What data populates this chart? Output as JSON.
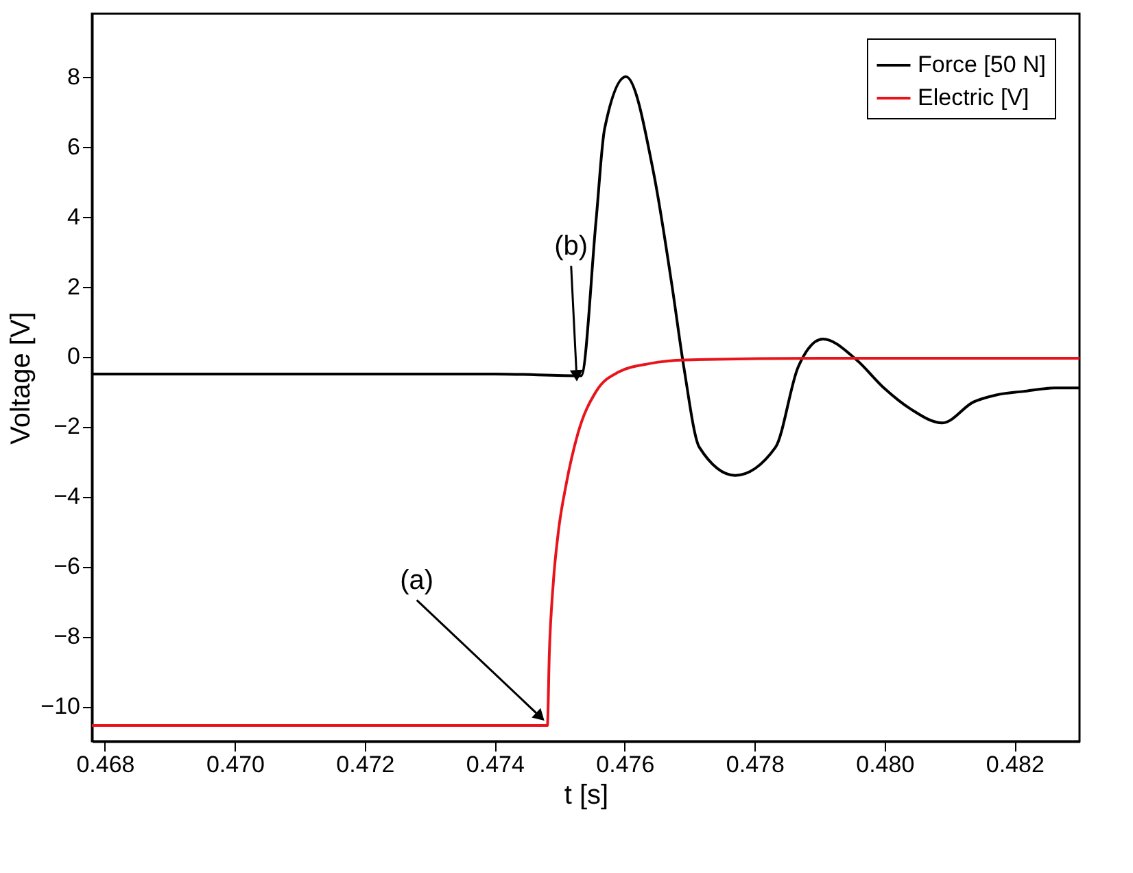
{
  "chart_data": {
    "type": "line",
    "xlabel": "t [s]",
    "ylabel": "Voltage [V]",
    "xlim": [
      0.4678,
      0.483
    ],
    "ylim": [
      -11,
      9.8
    ],
    "xticks": [
      0.468,
      {
        "value": 0.47,
        "label": "0.470"
      },
      0.472,
      0.474,
      0.476,
      0.478,
      {
        "value": 0.48,
        "label": "0.480"
      },
      0.482
    ],
    "yticks": [
      -10,
      -8,
      -6,
      -4,
      -2,
      0,
      2,
      4,
      6,
      8
    ],
    "grid": false,
    "legend": "top right",
    "line_style": "solid",
    "marker": "none",
    "series": [
      {
        "name": "Force [50 N]",
        "color": "#000000",
        "x": [
          0.4678,
          0.47,
          0.472,
          0.474,
          0.47533,
          0.47556,
          0.47569,
          0.47602,
          0.47645,
          0.47673,
          0.47691,
          0.47715,
          0.4777,
          0.47832,
          0.47867,
          0.47905,
          0.47957,
          0.47999,
          0.4804,
          0.48089,
          0.48137,
          0.48172,
          0.48213,
          0.48262,
          0.483
        ],
        "values": [
          -0.5,
          -0.5,
          -0.5,
          -0.5,
          -0.55,
          3.9,
          6.5,
          8.0,
          5.2,
          2.0,
          -0.3,
          -2.6,
          -3.4,
          -2.6,
          -0.3,
          0.5,
          -0.1,
          -0.9,
          -1.5,
          -1.9,
          -1.3,
          -1.1,
          -1.0,
          -0.9,
          -0.9
        ]
      },
      {
        "name": "Electric [V]",
        "color": "#e8141c",
        "x": [
          0.4678,
          0.472,
          0.47481,
          0.47484,
          0.4749,
          0.47498,
          0.4751,
          0.47528,
          0.47556,
          0.4759,
          0.47639,
          0.47693,
          0.479,
          0.483
        ],
        "values": [
          -10.55,
          -10.55,
          -10.55,
          -8.5,
          -6.5,
          -5.0,
          -3.65,
          -2.2,
          -1.0,
          -0.45,
          -0.2,
          -0.1,
          -0.05,
          -0.05
        ]
      }
    ],
    "annotations": [
      {
        "text": "(a)",
        "x": 0.4747,
        "y": -10.3
      },
      {
        "text": "(b)",
        "x": 0.47526,
        "y": -0.55
      }
    ]
  }
}
